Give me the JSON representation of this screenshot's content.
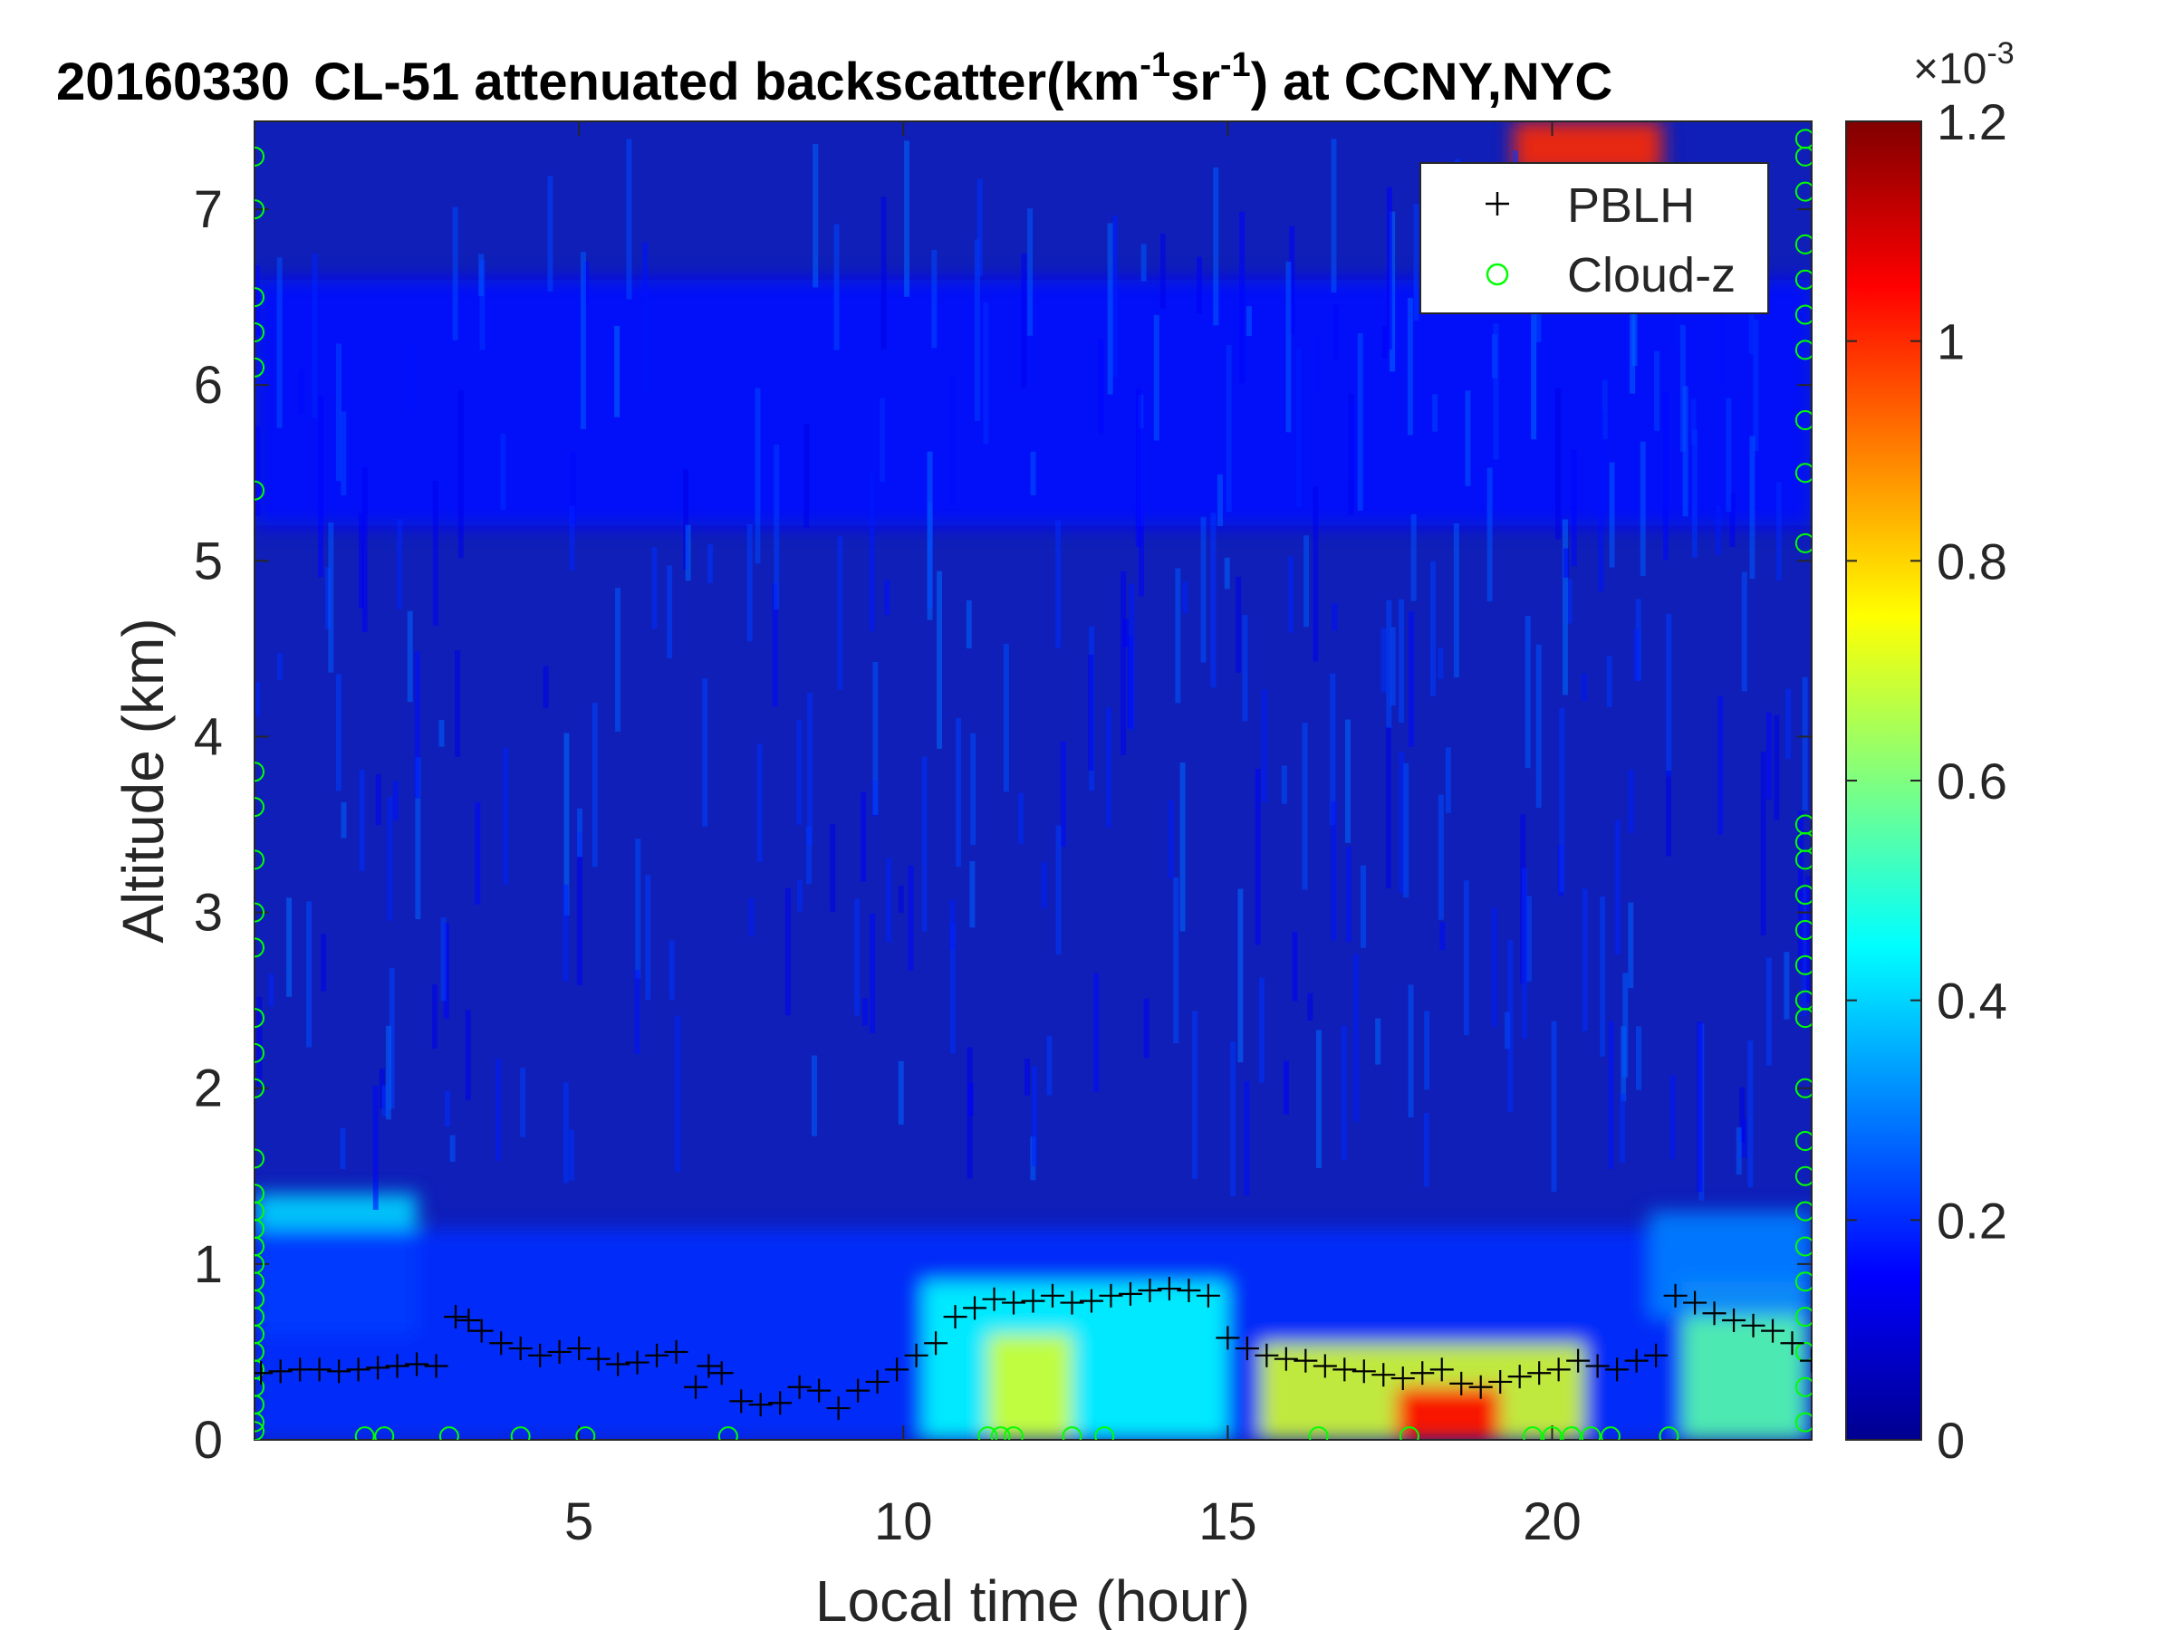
{
  "chart_data": {
    "type": "heatmap",
    "title": {
      "date": "20160330",
      "main": "CL-51 attenuated backscatter(km",
      "sup1": "-1",
      "mid": "sr",
      "sup2": "-1",
      "tail": ") at CCNY,NYC"
    },
    "xlabel": "Local time (hour)",
    "ylabel": "Altitude (km)",
    "xlim": [
      0,
      24
    ],
    "ylim": [
      0,
      7.5
    ],
    "xticks": [
      5,
      10,
      15,
      20
    ],
    "yticks": [
      0,
      1,
      2,
      3,
      4,
      5,
      6,
      7
    ],
    "colorbar": {
      "colormap": "jet",
      "range": [
        0,
        1.2
      ],
      "ticks": [
        "0",
        "0.2",
        "0.4",
        "0.6",
        "0.8",
        "1",
        "1.2"
      ],
      "exponent_label": "×10",
      "exponent": "-3"
    },
    "legend": {
      "position": "top-right",
      "entries": [
        {
          "label": "PBLH",
          "marker": "+",
          "color": "#000000"
        },
        {
          "label": "Cloud-z",
          "marker": "o",
          "color": "#00ff00"
        }
      ]
    },
    "series": [
      {
        "name": "PBLH",
        "marker": "+",
        "color": "#000000",
        "x": [
          0.1,
          0.4,
          0.7,
          1.0,
          1.3,
          1.6,
          1.9,
          2.2,
          2.5,
          2.8,
          3.1,
          3.3,
          3.5,
          3.8,
          4.1,
          4.4,
          4.7,
          5.0,
          5.3,
          5.6,
          5.9,
          6.2,
          6.5,
          6.8,
          7.0,
          7.2,
          7.5,
          7.8,
          8.1,
          8.4,
          8.7,
          9.0,
          9.3,
          9.6,
          9.9,
          10.2,
          10.5,
          10.8,
          11.1,
          11.4,
          11.7,
          12.0,
          12.3,
          12.6,
          12.9,
          13.2,
          13.5,
          13.8,
          14.1,
          14.4,
          14.7,
          15.0,
          15.3,
          15.6,
          15.9,
          16.2,
          16.5,
          16.8,
          17.1,
          17.4,
          17.7,
          18.0,
          18.3,
          18.6,
          18.9,
          19.2,
          19.5,
          19.8,
          20.1,
          20.4,
          20.7,
          21.0,
          21.3,
          21.6,
          21.9,
          22.2,
          22.5,
          22.8,
          23.1,
          23.4,
          23.7,
          24.0
        ],
        "y": [
          0.38,
          0.39,
          0.4,
          0.4,
          0.39,
          0.4,
          0.41,
          0.42,
          0.43,
          0.42,
          0.7,
          0.68,
          0.62,
          0.55,
          0.52,
          0.48,
          0.5,
          0.52,
          0.46,
          0.43,
          0.44,
          0.48,
          0.5,
          0.3,
          0.42,
          0.38,
          0.22,
          0.2,
          0.21,
          0.3,
          0.28,
          0.18,
          0.28,
          0.33,
          0.4,
          0.48,
          0.55,
          0.7,
          0.75,
          0.8,
          0.78,
          0.79,
          0.82,
          0.78,
          0.79,
          0.82,
          0.83,
          0.85,
          0.86,
          0.85,
          0.82,
          0.58,
          0.52,
          0.48,
          0.46,
          0.45,
          0.42,
          0.4,
          0.39,
          0.37,
          0.35,
          0.38,
          0.4,
          0.32,
          0.3,
          0.33,
          0.36,
          0.38,
          0.4,
          0.45,
          0.42,
          0.4,
          0.45,
          0.48,
          0.82,
          0.78,
          0.72,
          0.68,
          0.65,
          0.62,
          0.55,
          0.45
        ]
      },
      {
        "name": "Cloud-z",
        "marker": "o",
        "color": "#00ff00",
        "x": [
          0.0,
          0.0,
          0.0,
          0.0,
          0.0,
          0.0,
          0.0,
          0.0,
          0.0,
          0.0,
          0.0,
          0.0,
          0.0,
          0.0,
          0.0,
          0.0,
          0.0,
          0.0,
          0.0,
          0.0,
          0.0,
          0.0,
          0.0,
          0.0,
          0.0,
          0.0,
          0.0,
          0.0,
          0.0,
          0.0,
          1.7,
          2.0,
          3.0,
          4.1,
          5.1,
          7.3,
          11.3,
          11.5,
          11.7,
          12.6,
          13.1,
          16.4,
          17.8,
          19.7,
          20.0,
          20.3,
          20.6,
          20.9,
          21.8,
          23.9,
          23.9,
          23.9,
          23.9,
          23.9,
          23.9,
          23.9,
          23.9,
          23.9,
          23.9,
          23.9,
          23.9,
          23.9,
          23.9,
          23.9,
          23.9,
          23.9,
          23.9,
          23.9,
          23.9,
          23.9,
          23.9,
          23.9,
          23.9,
          23.9,
          23.9,
          23.9,
          23.9
        ],
        "y": [
          7.3,
          7.0,
          6.5,
          6.3,
          6.1,
          5.4,
          3.8,
          3.6,
          3.3,
          3.0,
          2.8,
          2.4,
          2.0,
          1.6,
          1.4,
          1.2,
          1.0,
          0.8,
          0.6,
          0.4,
          0.2,
          0.1,
          0.05,
          0.9,
          0.7,
          0.5,
          0.3,
          1.1,
          1.3,
          2.2,
          0.02,
          0.02,
          0.02,
          0.02,
          0.02,
          0.02,
          0.02,
          0.02,
          0.02,
          0.02,
          0.02,
          0.02,
          0.02,
          0.02,
          0.02,
          0.02,
          0.02,
          0.02,
          0.02,
          7.3,
          7.1,
          6.8,
          6.6,
          6.4,
          5.8,
          5.5,
          5.1,
          3.5,
          3.4,
          3.1,
          2.9,
          2.7,
          2.4,
          2.0,
          1.7,
          1.5,
          1.3,
          1.1,
          0.9,
          0.7,
          0.5,
          0.3,
          0.1,
          3.3,
          2.5,
          6.2,
          7.4
        ]
      }
    ],
    "field_features": [
      {
        "t0": 0.0,
        "t1": 24.0,
        "z0": 5.2,
        "z1": 6.6,
        "level": 0.16
      },
      {
        "t0": 0.0,
        "t1": 2.5,
        "z0": 0.6,
        "z1": 1.4,
        "level": 0.4
      },
      {
        "t0": 0.0,
        "t1": 24.0,
        "z0": 0.0,
        "z1": 1.2,
        "level": 0.2
      },
      {
        "t0": 10.3,
        "t1": 15.0,
        "z0": 0.0,
        "z1": 0.9,
        "level": 0.45
      },
      {
        "t0": 11.3,
        "t1": 12.6,
        "z0": 0.0,
        "z1": 0.6,
        "level": 0.7
      },
      {
        "t0": 15.5,
        "t1": 20.5,
        "z0": 0.0,
        "z1": 0.55,
        "level": 0.7
      },
      {
        "t0": 17.6,
        "t1": 19.2,
        "z0": 0.0,
        "z1": 0.3,
        "level": 1.05
      },
      {
        "t0": 22.0,
        "t1": 23.9,
        "z0": 0.0,
        "z1": 0.9,
        "level": 0.55
      },
      {
        "t0": 21.5,
        "t1": 24.0,
        "z0": 0.7,
        "z1": 1.3,
        "level": 0.3
      },
      {
        "t0": 19.4,
        "t1": 21.7,
        "z0": 7.2,
        "z1": 7.5,
        "level": 1.0
      }
    ]
  }
}
